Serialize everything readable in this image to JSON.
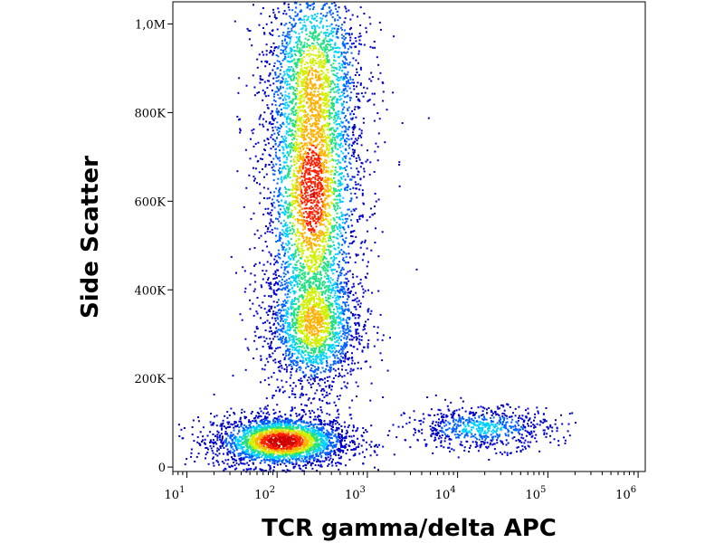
{
  "chart_data": {
    "type": "heatmap",
    "title": "",
    "xlabel": "TCR gamma/delta APC",
    "ylabel": "Side Scatter",
    "x_scale": "log",
    "xlim": [
      7,
      1200000
    ],
    "ylim": [
      -10000,
      1050000
    ],
    "x_ticks": [
      {
        "value": 10,
        "base": "10",
        "exp": "1"
      },
      {
        "value": 100,
        "base": "10",
        "exp": "2"
      },
      {
        "value": 1000,
        "base": "10",
        "exp": "3"
      },
      {
        "value": 10000,
        "base": "10",
        "exp": "4"
      },
      {
        "value": 100000,
        "base": "10",
        "exp": "5"
      },
      {
        "value": 1000000,
        "base": "10",
        "exp": "6"
      }
    ],
    "y_ticks": [
      {
        "value": 0,
        "label": "0"
      },
      {
        "value": 200000,
        "label": "200K"
      },
      {
        "value": 400000,
        "label": "400K"
      },
      {
        "value": 600000,
        "label": "600K"
      },
      {
        "value": 800000,
        "label": "800K"
      },
      {
        "value": 1000000,
        "label": "1,0M"
      }
    ],
    "grid": false,
    "colormap": [
      "#0000c8",
      "#0060ff",
      "#00d0ff",
      "#20e080",
      "#d0f000",
      "#ffb000",
      "#ff2000",
      "#d00000"
    ],
    "populations": [
      {
        "x_center": 110,
        "y_center": 60000,
        "x_spread_decades": 0.28,
        "y_spread": 22000,
        "weight": 1.0
      },
      {
        "x_center": 240,
        "y_center": 620000,
        "x_spread_decades": 0.2,
        "y_spread": 140000,
        "weight": 0.85
      },
      {
        "x_center": 250,
        "y_center": 320000,
        "x_spread_decades": 0.2,
        "y_spread": 55000,
        "weight": 0.55
      },
      {
        "x_center": 250,
        "y_center": 900000,
        "x_spread_decades": 0.22,
        "y_spread": 90000,
        "weight": 0.45
      },
      {
        "x_center": 18000,
        "y_center": 90000,
        "x_spread_decades": 0.3,
        "y_spread": 18000,
        "weight": 0.25
      }
    ]
  }
}
